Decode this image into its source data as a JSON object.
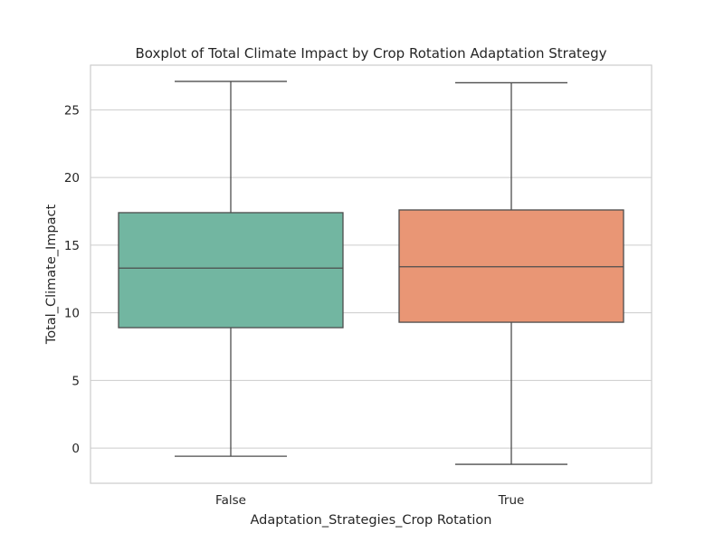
{
  "chart_data": {
    "type": "box",
    "title": "Boxplot of Total Climate Impact by Crop Rotation Adaptation Strategy",
    "xlabel": "Adaptation_Strategies_Crop Rotation",
    "ylabel": "Total_Climate_Impact",
    "ylim": [
      -2.6,
      28.3
    ],
    "yticks": [
      0,
      5,
      10,
      15,
      20,
      25
    ],
    "grid": true,
    "categories": [
      "False",
      "True"
    ],
    "boxes": [
      {
        "category": "False",
        "whisker_low": -0.6,
        "q1": 8.9,
        "median": 13.3,
        "q3": 17.4,
        "whisker_high": 27.1,
        "color": "#72b6a1"
      },
      {
        "category": "True",
        "whisker_low": -1.2,
        "q1": 9.3,
        "median": 13.4,
        "q3": 17.6,
        "whisker_high": 27.0,
        "color": "#e99675"
      }
    ]
  }
}
